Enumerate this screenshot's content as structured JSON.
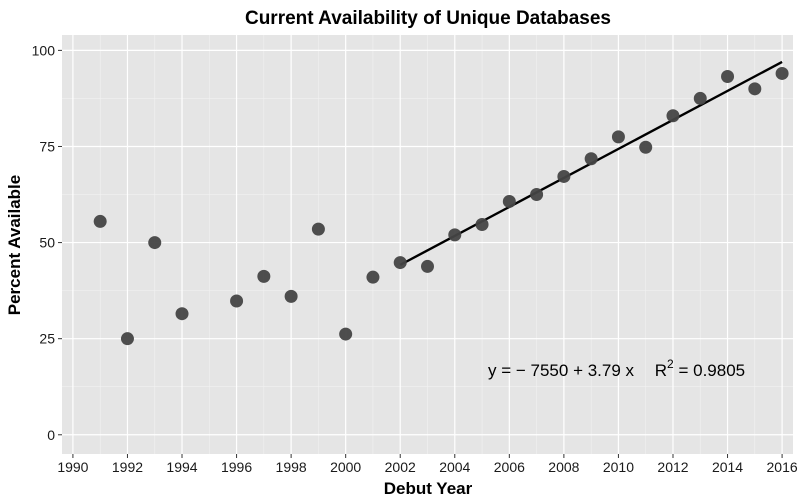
{
  "chart_data": {
    "type": "scatter",
    "title": "Current Availability of Unique Databases",
    "xlabel": "Debut Year",
    "ylabel": "Percent Available",
    "xlim": [
      1989.6,
      2016.4
    ],
    "ylim": [
      -5,
      104
    ],
    "x_ticks": [
      1990,
      1992,
      1994,
      1996,
      1998,
      2000,
      2002,
      2004,
      2006,
      2008,
      2010,
      2012,
      2014,
      2016
    ],
    "y_ticks": [
      0,
      25,
      50,
      75,
      100
    ],
    "grid": true,
    "background": "#e5e5e5",
    "point_color": "#444444",
    "line_color": "#000000",
    "series": [
      {
        "x": [
          1991,
          1992,
          1993,
          1994,
          1996,
          1997,
          1998,
          1999,
          2000,
          2001,
          2002,
          2003,
          2004,
          2005,
          2006,
          2007,
          2008,
          2009,
          2010,
          2011,
          2012,
          2013,
          2014,
          2015,
          2016
        ],
        "y": [
          55.5,
          25,
          50,
          31.5,
          34.8,
          41.2,
          36,
          53.5,
          26.2,
          41,
          44.8,
          43.8,
          52,
          54.7,
          60.7,
          62.5,
          67.2,
          71.8,
          77.5,
          74.8,
          83,
          87.5,
          93.2,
          90,
          94
        ]
      }
    ],
    "trendline": {
      "x": [
        2002,
        2016
      ],
      "y": [
        44.2,
        97.0
      ]
    },
    "annotation": {
      "eq_prefix": "y = − 7550 + 3.79 x",
      "r_label": "R",
      "r_exp": "2",
      "r_value": " = 0.9805"
    }
  }
}
